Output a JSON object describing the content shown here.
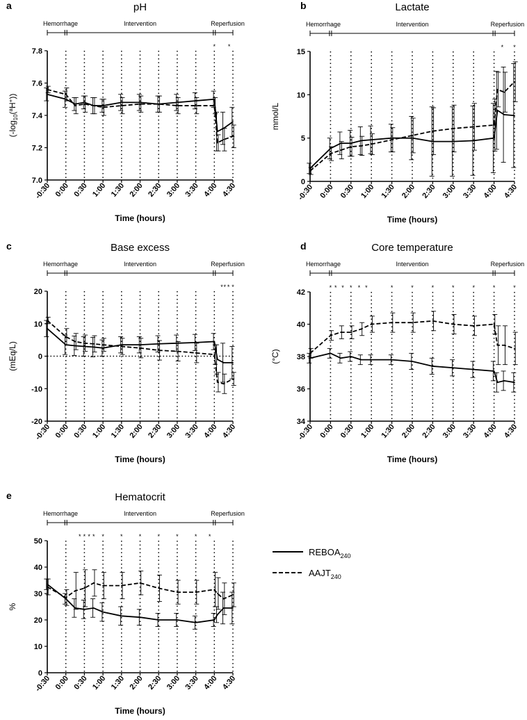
{
  "figure": {
    "legend": [
      {
        "label": "REBOA",
        "sub": "240",
        "style": "solid"
      },
      {
        "label": "AAJT",
        "sub": "240",
        "style": "dashed"
      }
    ]
  },
  "phases": [
    "Hemorrhage",
    "Intervention",
    "Reperfusion"
  ],
  "chart_data": [
    {
      "letter": "a",
      "type": "line",
      "title": "pH",
      "ylabel": "(-log10(aH+))",
      "ylabel_parts": [
        "(-log",
        "10",
        "(",
        "a",
        "H",
        "+",
        "))"
      ],
      "xlabel": "Time (hours)",
      "ylim": [
        7.0,
        7.8
      ],
      "yticks": [
        "7.0",
        "7.2",
        "7.4",
        "7.6",
        "7.8"
      ],
      "x": [
        -0.5,
        0,
        0.25,
        0.5,
        0.75,
        1,
        1.5,
        2,
        2.5,
        3,
        3.5,
        4,
        4.083,
        4.25,
        4.5
      ],
      "xticks": [
        "-0:30",
        "0:00",
        "0:30",
        "1:00",
        "1:30",
        "2:00",
        "2:30",
        "3:00",
        "3:30",
        "4:00",
        "4:30"
      ],
      "star_x": [
        4,
        4.4
      ],
      "series": [
        {
          "name": "REBOA240",
          "values": [
            7.53,
            7.5,
            7.47,
            7.48,
            7.46,
            7.46,
            7.48,
            7.48,
            7.47,
            7.48,
            7.49,
            7.5,
            7.3,
            7.32,
            7.36
          ],
          "err": [
            0.04,
            0.05,
            0.04,
            0.04,
            0.05,
            0.04,
            0.05,
            0.05,
            0.05,
            0.05,
            0.05,
            0.05,
            0.12,
            0.1,
            0.09
          ]
        },
        {
          "name": "AAJT240",
          "values": [
            7.56,
            7.53,
            7.46,
            7.47,
            7.46,
            7.45,
            7.46,
            7.47,
            7.47,
            7.46,
            7.46,
            7.46,
            7.23,
            7.25,
            7.27
          ],
          "err": [
            0.02,
            0.04,
            0.05,
            0.05,
            0.05,
            0.05,
            0.05,
            0.05,
            0.05,
            0.05,
            0.05,
            0.05,
            0.05,
            0.07,
            0.07
          ]
        }
      ]
    },
    {
      "letter": "b",
      "type": "line",
      "title": "Lactate",
      "ylabel": "mmol/L",
      "xlabel": "Time (hours)",
      "ylim": [
        0,
        15
      ],
      "yticks": [
        "0",
        "5",
        "10",
        "15"
      ],
      "x": [
        -0.5,
        0,
        0.25,
        0.5,
        0.75,
        1,
        1.5,
        2,
        2.5,
        3,
        3.5,
        4,
        4.083,
        4.25,
        4.5
      ],
      "xticks": [
        "-0:30",
        "0:00",
        "0:30",
        "1:00",
        "1:30",
        "2:00",
        "2:30",
        "3:00",
        "3:30",
        "4:00",
        "4:30"
      ],
      "star_x": [
        4.2,
        4.5
      ],
      "series": [
        {
          "name": "REBOA240",
          "values": [
            1.5,
            3.8,
            4.4,
            4.4,
            4.7,
            4.8,
            5.0,
            5.0,
            4.6,
            4.6,
            4.7,
            5.0,
            8.2,
            7.7,
            7.6
          ],
          "err": [
            0.6,
            1.2,
            1.3,
            1.5,
            1.6,
            1.6,
            1.6,
            2.5,
            4.0,
            4.0,
            4.0,
            4.0,
            4.5,
            5.5,
            6.0
          ]
        },
        {
          "name": "AAJT240",
          "values": [
            1.2,
            3.2,
            3.6,
            4.0,
            4.1,
            4.3,
            4.8,
            5.3,
            5.8,
            6.1,
            6.3,
            6.5,
            10.6,
            10.3,
            11.5
          ],
          "err": [
            0.4,
            0.8,
            1.0,
            1.1,
            1.1,
            1.2,
            1.4,
            2.0,
            2.7,
            2.7,
            2.7,
            3.0,
            2.0,
            2.3,
            2.3
          ]
        }
      ]
    },
    {
      "letter": "c",
      "type": "line",
      "title": "Base excess",
      "ylabel": "(mEq/L)",
      "xlabel": "Time (hours)",
      "ylim": [
        -20,
        20
      ],
      "yticks": [
        "-20",
        "-10",
        "0",
        "10",
        "20"
      ],
      "refline": 0,
      "x": [
        -0.5,
        0,
        0.25,
        0.5,
        0.75,
        1,
        1.5,
        2,
        2.5,
        3,
        3.5,
        4,
        4.083,
        4.25,
        4.5
      ],
      "xticks": [
        "-0:30",
        "0:00",
        "0:30",
        "1:00",
        "1:30",
        "2:00",
        "2:30",
        "3:00",
        "3:30",
        "4:00",
        "4:30"
      ],
      "star_x": [
        4.2,
        4.28,
        4.38,
        4.5
      ],
      "series": [
        {
          "name": "REBOA240",
          "values": [
            8.5,
            3.5,
            3.2,
            3.0,
            2.8,
            2.5,
            3.5,
            3.5,
            3.8,
            4.0,
            4.2,
            4.5,
            -1.0,
            -2.0,
            -2.0
          ],
          "err": [
            2.5,
            3.0,
            3.0,
            3.0,
            3.0,
            2.5,
            2.5,
            2.5,
            2.5,
            2.5,
            2.5,
            2.5,
            4.5,
            6.0,
            5.0
          ]
        },
        {
          "name": "AAJT240",
          "values": [
            11.0,
            6.0,
            4.5,
            4.0,
            3.8,
            3.5,
            3.0,
            2.5,
            1.8,
            1.5,
            1.0,
            0.5,
            -8.0,
            -8.5,
            -7.0
          ],
          "err": [
            1.0,
            2.5,
            2.5,
            2.5,
            2.5,
            2.0,
            2.5,
            3.0,
            3.0,
            3.0,
            3.0,
            3.0,
            3.0,
            3.0,
            2.0
          ]
        }
      ]
    },
    {
      "letter": "d",
      "type": "line",
      "title": "Core temperature",
      "ylabel": "(°C)",
      "xlabel": "Time (hours)",
      "ylim": [
        34,
        42
      ],
      "yticks": [
        "34",
        "36",
        "38",
        "40",
        "42"
      ],
      "x": [
        -0.5,
        0,
        0.25,
        0.5,
        0.75,
        1,
        1.5,
        2,
        2.5,
        3,
        3.5,
        4,
        4.083,
        4.25,
        4.5
      ],
      "xticks": [
        "-0:30",
        "0:00",
        "0:30",
        "1:00",
        "1:30",
        "2:00",
        "2:30",
        "3:00",
        "3:30",
        "4:00",
        "4:30"
      ],
      "star_x": [
        0,
        0.125,
        0.3,
        0.5,
        0.7,
        0.875,
        1.5,
        2,
        2.5,
        3,
        3.5,
        4,
        4.5
      ],
      "series": [
        {
          "name": "REBOA240",
          "values": [
            37.9,
            38.2,
            37.9,
            38.0,
            37.8,
            37.8,
            37.8,
            37.7,
            37.4,
            37.3,
            37.2,
            37.1,
            36.4,
            36.5,
            36.4
          ],
          "err": [
            0.3,
            0.3,
            0.3,
            0.3,
            0.3,
            0.3,
            0.3,
            0.5,
            0.5,
            0.5,
            0.5,
            0.6,
            0.6,
            0.6,
            0.6
          ]
        },
        {
          "name": "AAJT240",
          "values": [
            38.2,
            39.3,
            39.5,
            39.5,
            39.7,
            40.0,
            40.1,
            40.1,
            40.2,
            40.0,
            39.9,
            40.0,
            38.7,
            38.7,
            38.5
          ],
          "err": [
            0.3,
            0.3,
            0.4,
            0.4,
            0.4,
            0.5,
            0.6,
            0.6,
            0.6,
            0.6,
            0.6,
            0.6,
            1.2,
            1.2,
            1.0
          ]
        }
      ]
    },
    {
      "letter": "e",
      "type": "line",
      "title": "Hematocrit",
      "ylabel": "%",
      "xlabel": "Time (hours)",
      "ylim": [
        0,
        50
      ],
      "yticks": [
        "0",
        "10",
        "20",
        "30",
        "40",
        "50"
      ],
      "x": [
        -0.5,
        0,
        0.25,
        0.5,
        0.75,
        1,
        1.5,
        2,
        2.5,
        3,
        3.5,
        4,
        4.083,
        4.25,
        4.5
      ],
      "xticks": [
        "-0:30",
        "0:00",
        "0:30",
        "1:00",
        "1:30",
        "2:00",
        "2:30",
        "3:00",
        "3:30",
        "4:00",
        "4:30"
      ],
      "star_x": [
        0.375,
        0.5,
        0.625,
        0.75,
        1,
        1.5,
        2,
        2.5,
        3,
        3.5,
        3.875
      ],
      "series": [
        {
          "name": "REBOA240",
          "values": [
            33.5,
            28.0,
            24.5,
            24.0,
            24.5,
            23.0,
            21.5,
            21.0,
            20.0,
            20.0,
            19.0,
            20.0,
            22.0,
            24.5,
            24.5
          ],
          "err": [
            2.0,
            2.0,
            3.5,
            3.5,
            3.5,
            3.5,
            3.5,
            3.0,
            2.5,
            2.5,
            2.5,
            2.5,
            3.0,
            6.0,
            6.0
          ]
        },
        {
          "name": "AAJT240",
          "values": [
            32.5,
            28.5,
            31.0,
            32.0,
            34.0,
            33.0,
            33.0,
            34.0,
            32.0,
            30.5,
            30.5,
            31.5,
            30.0,
            28.0,
            29.5
          ],
          "err": [
            3.0,
            3.0,
            7.0,
            7.0,
            5.0,
            5.0,
            5.0,
            4.5,
            5.0,
            4.5,
            4.5,
            6.5,
            6.0,
            6.0,
            4.5
          ]
        }
      ]
    }
  ]
}
